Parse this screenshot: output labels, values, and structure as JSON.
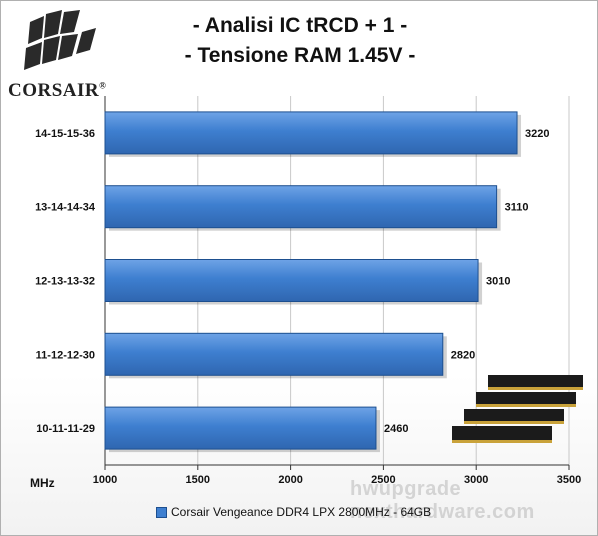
{
  "brand": {
    "logo_text": "CORSAIR",
    "logo_mark": "®"
  },
  "watermark": "hwupgrade nexthardware.com",
  "legend": {
    "label": "Corsair Vengeance DDR4 LPX 2800MHz - 64GB"
  },
  "colors": {
    "bar": "#3e7fd0",
    "bar_edge": "#1d4f8f",
    "grid": "#c8c8c8",
    "axis": "#333333"
  },
  "chart_data": {
    "type": "bar",
    "orientation": "horizontal",
    "title": "- Analisi IC  tRCD + 1 -",
    "subtitle": "- Tensione RAM 1.45V -",
    "xlabel": "MHz",
    "ylabel": "",
    "categories": [
      "14-15-15-36",
      "13-14-14-34",
      "12-13-13-32",
      "11-12-12-30",
      "10-11-11-29"
    ],
    "series": [
      {
        "name": "Corsair Vengeance DDR4 LPX 2800MHz - 64GB",
        "values": [
          3220,
          3110,
          3010,
          2820,
          2460
        ]
      }
    ],
    "xlim": [
      1000,
      3500
    ],
    "xticks": [
      1000,
      1500,
      2000,
      2500,
      3000,
      3500
    ],
    "grid": true,
    "legend_position": "bottom"
  }
}
